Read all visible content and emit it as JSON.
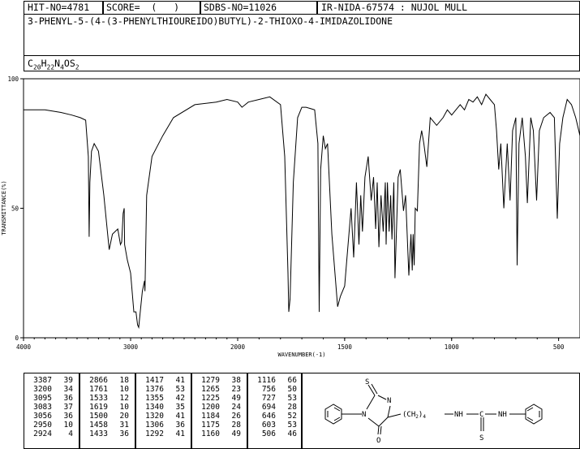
{
  "header": {
    "hit_no": "HIT-NO=4781",
    "score": "SCORE=  (   )",
    "sdbs_no": "SDBS-NO=11026",
    "ir_info": "IR-NIDA-67574 : NUJOL MULL",
    "compound_name": "3-PHENYL-5-(4-(3-PHENYLTHIOUREIDO)BUTYL)-2-THIOXO-4-IMIDAZOLIDONE",
    "formula": {
      "C": "20",
      "H": "22",
      "N": "4",
      "O": "",
      "S": "2"
    }
  },
  "chart_data": {
    "type": "line",
    "xlabel": "WAVENUMBER(-1)",
    "ylabel": "TRANSMITTANCE(%)",
    "xlim": [
      4000,
      400
    ],
    "ylim": [
      0,
      100
    ],
    "x_ticks": [
      "4000",
      "3000",
      "2000",
      "1500",
      "1000",
      "500"
    ],
    "y_ticks": [
      "0",
      "50",
      "100"
    ],
    "grid": false,
    "spectrum": [
      [
        4000,
        88
      ],
      [
        3800,
        88
      ],
      [
        3650,
        87
      ],
      [
        3550,
        86
      ],
      [
        3470,
        85
      ],
      [
        3420,
        84
      ],
      [
        3395,
        70
      ],
      [
        3387,
        39
      ],
      [
        3380,
        60
      ],
      [
        3365,
        72
      ],
      [
        3340,
        75
      ],
      [
        3300,
        72
      ],
      [
        3250,
        55
      ],
      [
        3200,
        34
      ],
      [
        3170,
        40
      ],
      [
        3120,
        42
      ],
      [
        3095,
        36
      ],
      [
        3083,
        37
      ],
      [
        3070,
        48
      ],
      [
        3060,
        50
      ],
      [
        3056,
        36
      ],
      [
        3030,
        30
      ],
      [
        3000,
        25
      ],
      [
        2970,
        10
      ],
      [
        2950,
        10
      ],
      [
        2935,
        5
      ],
      [
        2924,
        4
      ],
      [
        2910,
        10
      ],
      [
        2890,
        18
      ],
      [
        2870,
        22
      ],
      [
        2866,
        18
      ],
      [
        2850,
        55
      ],
      [
        2800,
        70
      ],
      [
        2700,
        78
      ],
      [
        2600,
        85
      ],
      [
        2400,
        90
      ],
      [
        2200,
        91
      ],
      [
        2100,
        92
      ],
      [
        2000,
        91
      ],
      [
        1980,
        89
      ],
      [
        1950,
        91
      ],
      [
        1900,
        92
      ],
      [
        1850,
        93
      ],
      [
        1800,
        90
      ],
      [
        1780,
        70
      ],
      [
        1765,
        25
      ],
      [
        1761,
        10
      ],
      [
        1755,
        15
      ],
      [
        1740,
        60
      ],
      [
        1720,
        85
      ],
      [
        1700,
        89
      ],
      [
        1680,
        89
      ],
      [
        1640,
        88
      ],
      [
        1625,
        75
      ],
      [
        1619,
        10
      ],
      [
        1612,
        65
      ],
      [
        1600,
        78
      ],
      [
        1590,
        73
      ],
      [
        1580,
        75
      ],
      [
        1560,
        40
      ],
      [
        1533,
        12
      ],
      [
        1520,
        16
      ],
      [
        1500,
        20
      ],
      [
        1490,
        30
      ],
      [
        1470,
        50
      ],
      [
        1458,
        31
      ],
      [
        1445,
        60
      ],
      [
        1433,
        36
      ],
      [
        1425,
        55
      ],
      [
        1417,
        41
      ],
      [
        1405,
        62
      ],
      [
        1390,
        70
      ],
      [
        1376,
        53
      ],
      [
        1365,
        62
      ],
      [
        1355,
        42
      ],
      [
        1348,
        60
      ],
      [
        1340,
        35
      ],
      [
        1330,
        55
      ],
      [
        1320,
        41
      ],
      [
        1310,
        60
      ],
      [
        1306,
        36
      ],
      [
        1300,
        60
      ],
      [
        1292,
        41
      ],
      [
        1285,
        55
      ],
      [
        1279,
        38
      ],
      [
        1270,
        60
      ],
      [
        1265,
        23
      ],
      [
        1250,
        62
      ],
      [
        1240,
        65
      ],
      [
        1225,
        49
      ],
      [
        1215,
        55
      ],
      [
        1200,
        24
      ],
      [
        1190,
        40
      ],
      [
        1184,
        26
      ],
      [
        1180,
        40
      ],
      [
        1175,
        28
      ],
      [
        1170,
        50
      ],
      [
        1160,
        49
      ],
      [
        1150,
        75
      ],
      [
        1140,
        80
      ],
      [
        1130,
        75
      ],
      [
        1116,
        66
      ],
      [
        1100,
        85
      ],
      [
        1070,
        82
      ],
      [
        1040,
        85
      ],
      [
        1020,
        88
      ],
      [
        1000,
        86
      ],
      [
        980,
        88
      ],
      [
        960,
        90
      ],
      [
        940,
        88
      ],
      [
        920,
        92
      ],
      [
        900,
        91
      ],
      [
        880,
        93
      ],
      [
        860,
        90
      ],
      [
        840,
        94
      ],
      [
        820,
        92
      ],
      [
        800,
        90
      ],
      [
        790,
        80
      ],
      [
        780,
        65
      ],
      [
        770,
        75
      ],
      [
        756,
        50
      ],
      [
        740,
        75
      ],
      [
        727,
        53
      ],
      [
        715,
        80
      ],
      [
        700,
        85
      ],
      [
        694,
        28
      ],
      [
        685,
        75
      ],
      [
        670,
        85
      ],
      [
        655,
        70
      ],
      [
        646,
        52
      ],
      [
        630,
        85
      ],
      [
        618,
        80
      ],
      [
        603,
        53
      ],
      [
        590,
        80
      ],
      [
        570,
        85
      ],
      [
        540,
        87
      ],
      [
        520,
        85
      ],
      [
        506,
        46
      ],
      [
        495,
        75
      ],
      [
        480,
        85
      ],
      [
        460,
        92
      ],
      [
        440,
        90
      ],
      [
        420,
        85
      ],
      [
        400,
        78
      ]
    ],
    "peak_table": [
      [
        [
          3387,
          39
        ],
        [
          3200,
          34
        ],
        [
          3095,
          36
        ],
        [
          3083,
          37
        ],
        [
          3056,
          36
        ],
        [
          2950,
          10
        ],
        [
          2924,
          4
        ]
      ],
      [
        [
          2866,
          18
        ],
        [
          1761,
          10
        ],
        [
          1533,
          12
        ],
        [
          1619,
          10
        ],
        [
          1500,
          20
        ],
        [
          1458,
          31
        ],
        [
          1433,
          36
        ]
      ],
      [
        [
          1417,
          41
        ],
        [
          1376,
          53
        ],
        [
          1355,
          42
        ],
        [
          1340,
          35
        ],
        [
          1320,
          41
        ],
        [
          1306,
          36
        ],
        [
          1292,
          41
        ]
      ],
      [
        [
          1279,
          38
        ],
        [
          1265,
          23
        ],
        [
          1225,
          49
        ],
        [
          1200,
          24
        ],
        [
          1184,
          26
        ],
        [
          1175,
          28
        ],
        [
          1160,
          49
        ]
      ],
      [
        [
          1116,
          66
        ],
        [
          756,
          50
        ],
        [
          727,
          53
        ],
        [
          694,
          28
        ],
        [
          646,
          52
        ],
        [
          603,
          53
        ],
        [
          506,
          46
        ]
      ]
    ]
  },
  "structure": {
    "labels": {
      "s_top": "S",
      "n_ring": "N",
      "n_left": "N",
      "o": "O",
      "chain": "(CH",
      "sub": "2",
      "chain_end": ")",
      "sub_n": "4",
      "nh1": "NH",
      "c": "C",
      "nh2": "NH",
      "s_bottom": "S"
    }
  }
}
